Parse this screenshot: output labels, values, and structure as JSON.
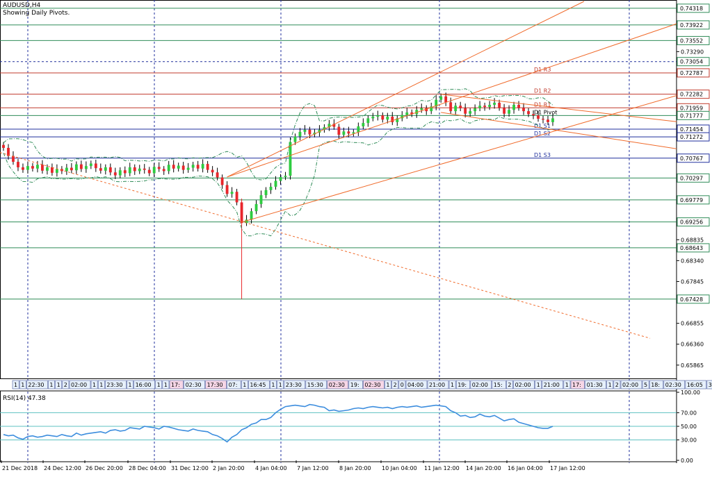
{
  "header": {
    "symbol": "AUDUSD,H4",
    "subtitle": "Showing Daily Pivots."
  },
  "rsi_panel": {
    "title": "RSI(14) 47.38"
  },
  "colors": {
    "bull": "#2ecc40",
    "bear": "#e8262b",
    "wick": "#000000",
    "pivot_line": "#c0392b",
    "support_line": "#1f2f9c",
    "level_line": "#2e8b57",
    "channel": "#f06a2a",
    "bands": "#2e8b57",
    "rsi_line": "#3c8dde",
    "rsi_levels": "#5cc0c0",
    "grid": "#1f2f9c",
    "axis": "#2a3a9c"
  },
  "chart_data": [
    {
      "type": "candlestick",
      "symbol": "AUDUSD",
      "timeframe": "H4",
      "y_axis_ticks": [
        "0.73290",
        "0.72787",
        "0.72282",
        "0.71959",
        "0.71777",
        "0.71454",
        "0.71272",
        "0.70767",
        "0.70297",
        "0.69779",
        "0.69256",
        "0.68835",
        "0.68340",
        "0.67845",
        "0.67428",
        "0.66855",
        "0.66360",
        "0.65865"
      ],
      "highlighted_levels": [
        {
          "value": 0.74318,
          "label": "0.74318",
          "color": "#2e8b57"
        },
        {
          "value": 0.73922,
          "label": "0.73922",
          "color": "#2e8b57"
        },
        {
          "value": 0.73552,
          "label": "0.73552",
          "color": "#2e8b57"
        },
        {
          "value": 0.73054,
          "label": "0.73054",
          "color": "#2e8b57"
        },
        {
          "value": 0.72787,
          "label": "0.72787",
          "color": "#c0392b"
        },
        {
          "value": 0.72282,
          "label": "0.72282",
          "color": "#c0392b"
        },
        {
          "value": 0.71959,
          "label": "0.71959",
          "color": "#c0392b"
        },
        {
          "value": 0.71777,
          "label": "0.71777",
          "color": "#2e8b57"
        },
        {
          "value": 0.71454,
          "label": "0.71454",
          "color": "#1f2f9c"
        },
        {
          "value": 0.71272,
          "label": "0.71272",
          "color": "#1f2f9c"
        },
        {
          "value": 0.70767,
          "label": "0.70767",
          "color": "#1f2f9c"
        },
        {
          "value": 0.70297,
          "label": "0.70297",
          "color": "#2e8b57"
        },
        {
          "value": 0.69779,
          "label": "0.69779",
          "color": "#2e8b57"
        },
        {
          "value": 0.69256,
          "label": "0.69256",
          "color": "#2e8b57"
        },
        {
          "value": 0.68643,
          "label": "0.68643",
          "color": "#2e8b57"
        },
        {
          "value": 0.67428,
          "label": "0.67428",
          "color": "#2e8b57"
        }
      ],
      "y_range": [
        0.6555,
        0.7448
      ],
      "pivots": [
        {
          "label": "D1  R3",
          "value": 0.72787,
          "color": "#c0392b"
        },
        {
          "label": "D1  R2",
          "value": 0.72282,
          "color": "#c0392b"
        },
        {
          "label": "D1  R1",
          "value": 0.71959,
          "color": "#c0392b"
        },
        {
          "label": "D1  Pivot",
          "value": 0.71777,
          "color": "#2e8b57"
        },
        {
          "label": "D1  S1",
          "value": 0.71454,
          "color": "#1f2f9c"
        },
        {
          "label": "D1  S2",
          "value": 0.71272,
          "color": "#1f2f9c"
        },
        {
          "label": "D1  S3",
          "value": 0.70767,
          "color": "#1f2f9c"
        }
      ],
      "x_labels": [
        "21 Dec 2018",
        "24 Dec 12:00",
        "26 Dec 20:00",
        "28 Dec 04:00",
        "31 Dec 12:00",
        "2 Jan 20:00",
        "4 Jan 04:00",
        "7 Jan 12:00",
        "8 Jan 20:00",
        "10 Jan 04:00",
        "11 Jan 12:00",
        "14 Jan 20:00",
        "16 Jan 04:00",
        "17 Jan 12:00"
      ],
      "closes": [
        0.7101,
        0.7082,
        0.7068,
        0.7055,
        0.7049,
        0.7058,
        0.7052,
        0.7061,
        0.7047,
        0.7055,
        0.7042,
        0.7051,
        0.7046,
        0.7054,
        0.7048,
        0.7062,
        0.7051,
        0.7058,
        0.7064,
        0.7053,
        0.7047,
        0.7055,
        0.7043,
        0.7036,
        0.7048,
        0.7041,
        0.7055,
        0.7046,
        0.7052,
        0.7049,
        0.7041,
        0.7056,
        0.7051,
        0.7046,
        0.7061,
        0.7052,
        0.7059,
        0.7049,
        0.7054,
        0.7061,
        0.7052,
        0.7063,
        0.7049,
        0.7043,
        0.7031,
        0.7013,
        0.6992,
        0.6997,
        0.6972,
        0.6923,
        0.6931,
        0.6951,
        0.6968,
        0.6989,
        0.7001,
        0.7009,
        0.7023,
        0.7032,
        0.7035,
        0.7115,
        0.7128,
        0.7139,
        0.7144,
        0.7133,
        0.7137,
        0.7144,
        0.715,
        0.7158,
        0.7151,
        0.7132,
        0.714,
        0.7135,
        0.7138,
        0.7152,
        0.716,
        0.7171,
        0.7175,
        0.7178,
        0.7168,
        0.7175,
        0.7162,
        0.7171,
        0.7179,
        0.7185,
        0.7181,
        0.7191,
        0.7195,
        0.7188,
        0.7199,
        0.7215,
        0.7223,
        0.7209,
        0.7188,
        0.7201,
        0.7195,
        0.7182,
        0.7188,
        0.7195,
        0.7201,
        0.7198,
        0.7203,
        0.7208,
        0.7196,
        0.7182,
        0.7191,
        0.7203,
        0.7196,
        0.7188,
        0.7181,
        0.7178,
        0.717,
        0.7168,
        0.7162,
        0.7171
      ],
      "rsi": {
        "ticks": [
          "100.00",
          "70.00",
          "50.00",
          "30.00",
          "0.00"
        ],
        "levels": [
          70,
          50,
          30
        ],
        "values": [
          38,
          36,
          37,
          33,
          31,
          35,
          36,
          34,
          35,
          37,
          36,
          35,
          38,
          36,
          35,
          40,
          37,
          39,
          40,
          41,
          42,
          40,
          44,
          45,
          43,
          44,
          48,
          47,
          46,
          50,
          49,
          48,
          46,
          50,
          49,
          47,
          45,
          44,
          43,
          46,
          44,
          43,
          42,
          38,
          36,
          32,
          27,
          34,
          38,
          45,
          48,
          53,
          55,
          60,
          60,
          63,
          70,
          75,
          79,
          80,
          81,
          80,
          79,
          82,
          81,
          79,
          78,
          73,
          74,
          72,
          73,
          74,
          76,
          77,
          76,
          78,
          79,
          78,
          77,
          78,
          76,
          78,
          79,
          78,
          79,
          80,
          78,
          79,
          80,
          81,
          80,
          79,
          73,
          70,
          65,
          66,
          63,
          64,
          68,
          65,
          64,
          66,
          62,
          58,
          60,
          61,
          56,
          54,
          52,
          50,
          48,
          47,
          47,
          50
        ]
      }
    }
  ]
}
